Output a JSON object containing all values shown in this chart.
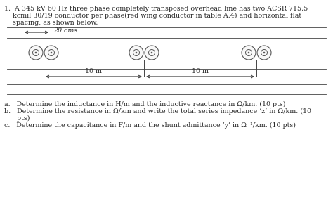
{
  "title_line": "1.  A 345 kV 60 Hz three phase completely transposed overhead line has two ACSR 715.5",
  "text_line2": "    kcmil 30/19 conductor per phase(red wing conductor in table A.4) and horizontal flat",
  "text_line3": "    spacing, as shown below.",
  "label_20cms": "20 cms",
  "label_10m_left": "10 m",
  "label_10m_right": "10 m",
  "question_a": "a.   Determine the inductance in H/m and the inductive reactance in Ω/km. (10 pts)",
  "question_b": "b.   Determine the resistance in Ω/km and write the total series impedance ‘z’ in Ω/km. (10",
  "question_b2": "      pts)",
  "question_c": "c.   Determine the capacitance in F/m and the shunt admittance ‘y’ in Ω⁻¹/km. (10 pts)",
  "bg_color": "#ffffff",
  "text_color": "#2a2a2a",
  "line_color": "#444444",
  "circle_edge_color": "#555555"
}
